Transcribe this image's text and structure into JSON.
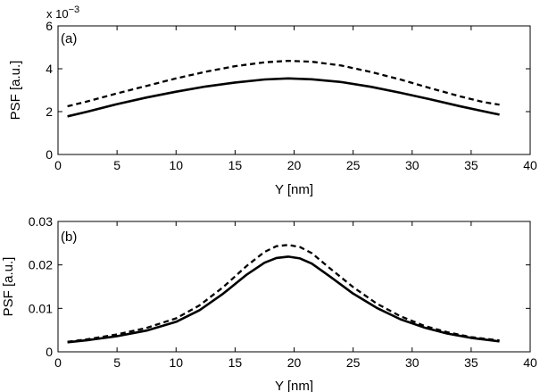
{
  "chart_data": [
    {
      "type": "line",
      "panel_label": "(a)",
      "xlabel": "Y [nm]",
      "ylabel": "PSF [a.u.]",
      "y_scale_label": "x 10",
      "y_scale_exponent": "−3",
      "xlim": [
        0,
        40
      ],
      "ylim": [
        0,
        6
      ],
      "xticks": [
        0,
        5,
        10,
        15,
        20,
        25,
        30,
        35,
        40
      ],
      "yticks": [
        0,
        2,
        4,
        6
      ],
      "grid": false,
      "series": [
        {
          "name": "solid",
          "style": "solid",
          "x": [
            0.8,
            2.5,
            5,
            7.5,
            10,
            12.5,
            15,
            17.5,
            19.5,
            21.5,
            24,
            26.5,
            29,
            31.5,
            34,
            36,
            37.4
          ],
          "y": [
            1.78,
            2.0,
            2.35,
            2.66,
            2.93,
            3.17,
            3.36,
            3.5,
            3.55,
            3.51,
            3.38,
            3.16,
            2.88,
            2.58,
            2.26,
            2.02,
            1.86
          ]
        },
        {
          "name": "dashed",
          "style": "dashed",
          "x": [
            0.8,
            2.5,
            5,
            7.5,
            10,
            12.5,
            15,
            17.5,
            19.5,
            21.5,
            24,
            26.5,
            29,
            31.5,
            34,
            36,
            37.4
          ],
          "y": [
            2.25,
            2.48,
            2.85,
            3.2,
            3.55,
            3.86,
            4.12,
            4.3,
            4.37,
            4.33,
            4.15,
            3.85,
            3.5,
            3.1,
            2.72,
            2.45,
            2.32
          ]
        }
      ]
    },
    {
      "type": "line",
      "panel_label": "(b)",
      "xlabel": "Y [nm]",
      "ylabel": "PSF [a.u.]",
      "xlim": [
        0,
        40
      ],
      "ylim": [
        0,
        0.03
      ],
      "xticks": [
        0,
        5,
        10,
        15,
        20,
        25,
        30,
        35,
        40
      ],
      "yticks": [
        0,
        0.01,
        0.02,
        0.03
      ],
      "ytick_labels": [
        "0",
        "0.01",
        "0.02",
        "0.03"
      ],
      "grid": false,
      "series": [
        {
          "name": "solid",
          "style": "solid",
          "x": [
            0.8,
            2.5,
            5,
            7.5,
            10,
            12,
            14,
            16,
            17.5,
            18.5,
            19.5,
            20.5,
            21.5,
            23,
            25,
            27,
            29,
            31,
            33,
            35,
            37.4
          ],
          "y": [
            0.0022,
            0.0027,
            0.0036,
            0.0049,
            0.0069,
            0.0096,
            0.0134,
            0.0178,
            0.0205,
            0.0216,
            0.0219,
            0.0215,
            0.0203,
            0.0174,
            0.0134,
            0.0101,
            0.0075,
            0.0056,
            0.0042,
            0.0032,
            0.0024
          ]
        },
        {
          "name": "dashed",
          "style": "dashed",
          "x": [
            0.8,
            2.5,
            5,
            7.5,
            10,
            12,
            14,
            16,
            17.5,
            18.5,
            19.5,
            20.5,
            21.5,
            23,
            25,
            27,
            29,
            31,
            33,
            35,
            37.4
          ],
          "y": [
            0.0023,
            0.0029,
            0.004,
            0.0055,
            0.0077,
            0.0107,
            0.0149,
            0.0198,
            0.023,
            0.0243,
            0.0246,
            0.0241,
            0.0227,
            0.0193,
            0.0149,
            0.0111,
            0.0082,
            0.006,
            0.0045,
            0.0034,
            0.0026
          ]
        }
      ]
    }
  ]
}
